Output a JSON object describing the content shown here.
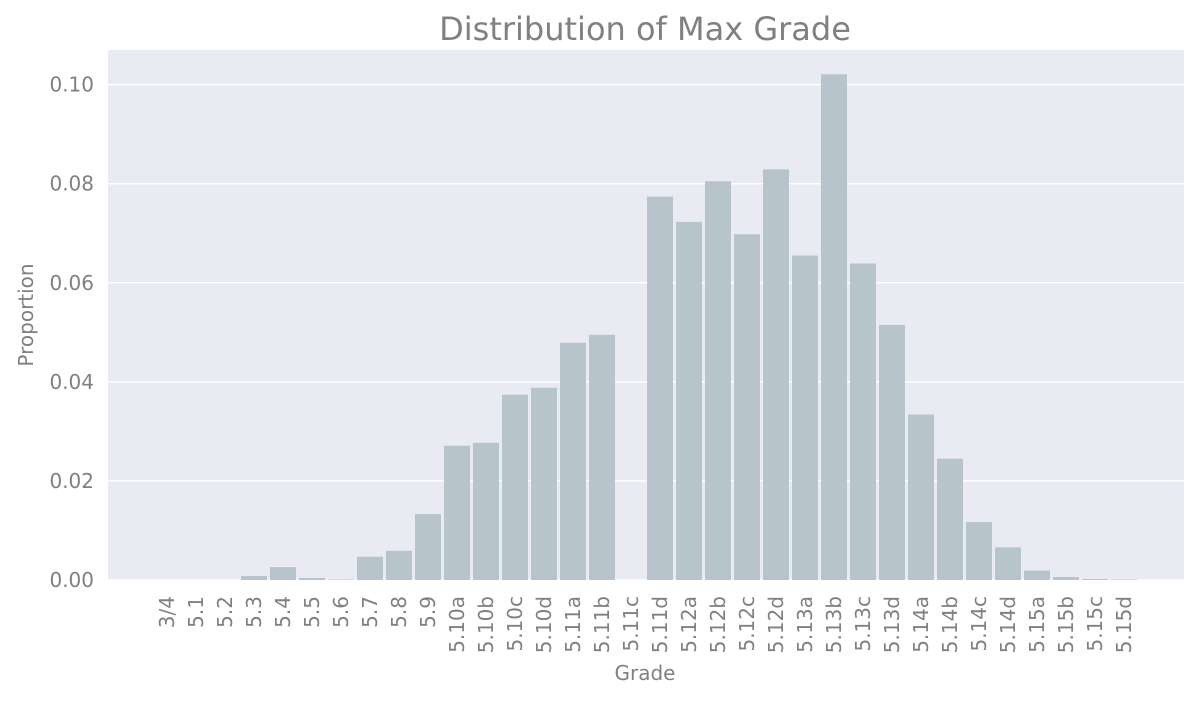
{
  "chart_data": {
    "type": "bar",
    "title": "Distribution of Max Grade",
    "xlabel": "Grade",
    "ylabel": "Proportion",
    "ylim": [
      0,
      0.107
    ],
    "yticks": [
      "0.00",
      "0.02",
      "0.04",
      "0.06",
      "0.08",
      "0.10"
    ],
    "grid": true,
    "categories": [
      "3/4",
      "5.1",
      "5.2",
      "5.3",
      "5.4",
      "5.5",
      "5.6",
      "5.7",
      "5.8",
      "5.9",
      "5.10a",
      "5.10b",
      "5.10c",
      "5.10d",
      "5.11a",
      "5.11b",
      "5.11c",
      "5.11d",
      "5.12a",
      "5.12b",
      "5.12c",
      "5.12d",
      "5.13a",
      "5.13b",
      "5.13c",
      "5.13d",
      "5.14a",
      "5.14b",
      "5.14c",
      "5.14d",
      "5.15a",
      "5.15b",
      "5.15c",
      "5.15d"
    ],
    "values": [
      0.0,
      0.0,
      0.0,
      0.0008,
      0.0026,
      0.0004,
      0.0001,
      0.0047,
      0.0059,
      0.0133,
      0.0271,
      0.0277,
      0.0374,
      0.0388,
      0.0479,
      0.0495,
      0.0,
      0.0774,
      0.0723,
      0.0805,
      0.0698,
      0.0829,
      0.0655,
      0.1021,
      0.0639,
      0.0515,
      0.0334,
      0.0245,
      0.0117,
      0.0066,
      0.0019,
      0.0006,
      0.0002,
      0.0001
    ],
    "colors": {
      "bar": "#b8c4cb",
      "plot_bg": "#eaeaf2",
      "grid": "#ffffff",
      "text": "#808080"
    }
  }
}
